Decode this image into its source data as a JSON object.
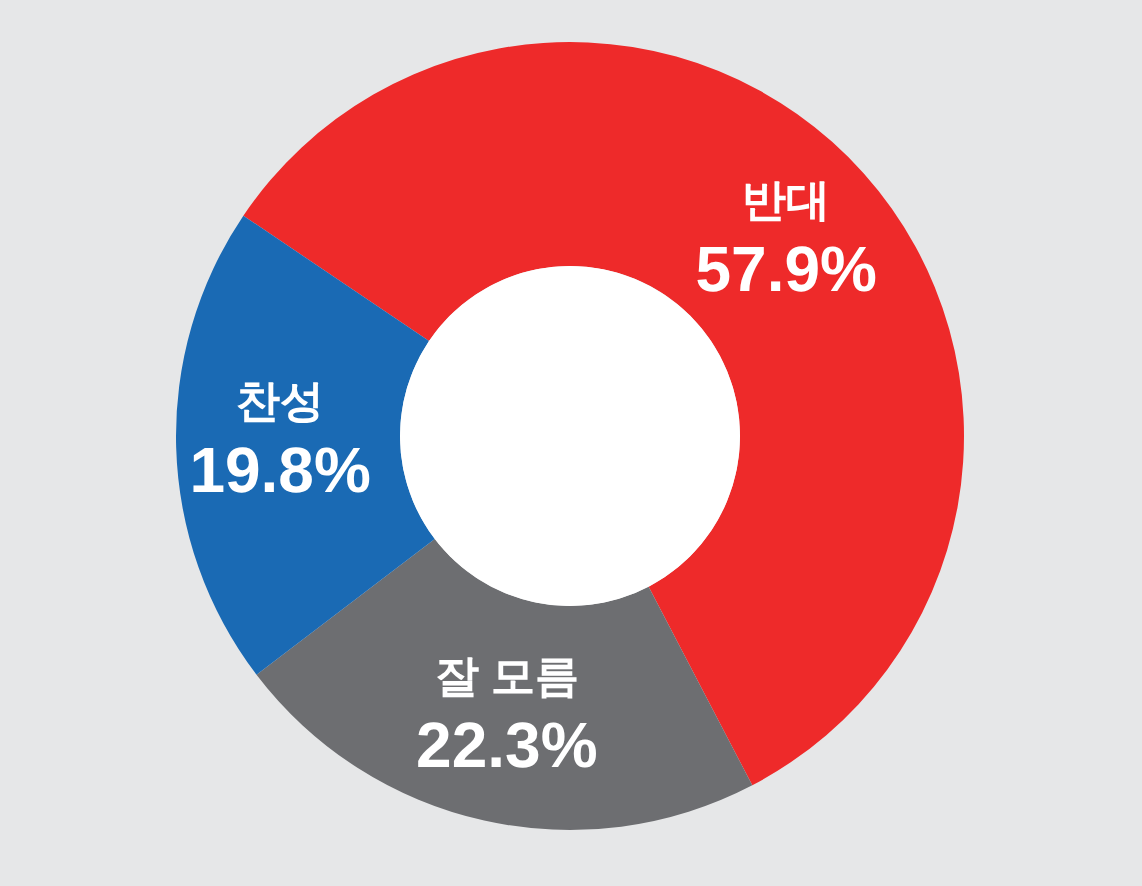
{
  "chart_data": {
    "type": "donut",
    "categories": [
      "반대",
      "잘 모름",
      "찬성"
    ],
    "values": [
      57.9,
      22.3,
      19.8
    ],
    "colors": [
      "#ee2a2a",
      "#6d6e71",
      "#1a6ab4"
    ],
    "value_labels": [
      "57.9%",
      "22.3%",
      "19.8%"
    ],
    "legend": false
  }
}
